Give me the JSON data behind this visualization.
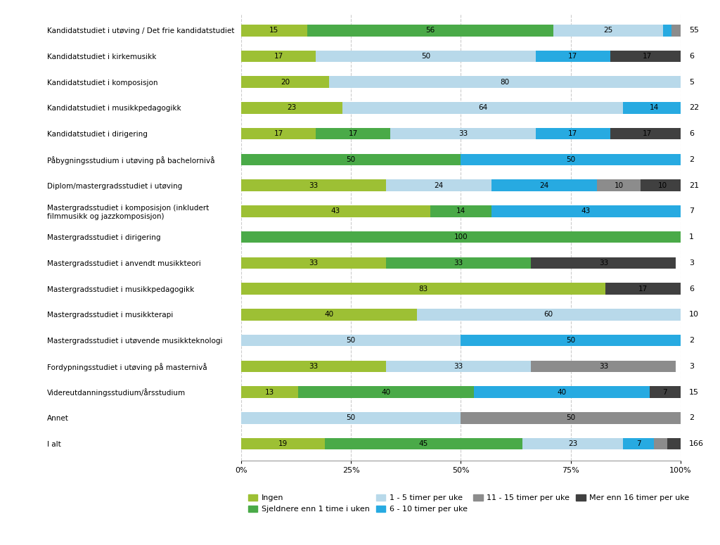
{
  "categories": [
    "Kandidatstudiet i utøving / Det frie kandidatstudiet",
    "Kandidatstudiet i kirkemusikk",
    "Kandidatstudiet i komposisjon",
    "Kandidatstudiet i musikkpedagogikk",
    "Kandidatstudiet i dirigering",
    "Påbygningsstudium i utøving på bachelornivå",
    "Diplom/mastergradsstudiet i utøving",
    "Mastergradsstudiet i komposisjon (inkludert\nfilmmusikk og jazzkomposisjon)",
    "Mastergradsstudiet i dirigering",
    "Mastergradsstudiet i anvendt musikkteori",
    "Mastergradsstudiet i musikkpedagogikk",
    "Mastergradsstudiet i musikkterapi",
    "Mastergradsstudiet i utøvende musikkteknologi",
    "Fordypningsstudiet i utøving på masternivå",
    "Videreutdanningsstudium/årsstudium",
    "Annet",
    "I alt"
  ],
  "n_values": [
    55,
    6,
    5,
    22,
    6,
    2,
    21,
    7,
    1,
    3,
    6,
    10,
    2,
    3,
    15,
    2,
    166
  ],
  "data": [
    [
      15,
      56,
      25,
      2,
      2,
      0
    ],
    [
      17,
      0,
      50,
      17,
      0,
      17
    ],
    [
      20,
      0,
      80,
      0,
      0,
      0
    ],
    [
      23,
      0,
      64,
      14,
      0,
      0
    ],
    [
      17,
      17,
      33,
      17,
      0,
      17
    ],
    [
      0,
      50,
      0,
      50,
      0,
      0
    ],
    [
      33,
      0,
      24,
      24,
      10,
      10
    ],
    [
      43,
      14,
      0,
      43,
      0,
      0
    ],
    [
      0,
      100,
      0,
      0,
      0,
      0
    ],
    [
      33,
      33,
      0,
      0,
      0,
      33
    ],
    [
      83,
      0,
      0,
      0,
      0,
      17
    ],
    [
      40,
      0,
      60,
      0,
      0,
      0
    ],
    [
      0,
      0,
      50,
      50,
      0,
      0
    ],
    [
      33,
      0,
      33,
      0,
      33,
      0
    ],
    [
      13,
      40,
      0,
      40,
      0,
      7
    ],
    [
      0,
      0,
      50,
      0,
      50,
      0
    ],
    [
      19,
      45,
      23,
      7,
      3,
      3
    ]
  ],
  "colors": [
    "#9dc034",
    "#4aaa48",
    "#b8d9ea",
    "#27aae1",
    "#8c8c8c",
    "#404040"
  ],
  "legend_labels": [
    "Ingen",
    "Sjeldnere enn 1 time i uken",
    "1 - 5 timer per uke",
    "6 - 10 timer per uke",
    "11 - 15 timer per uke",
    "Mer enn 16 timer per uke"
  ],
  "background_color": "#ffffff",
  "bar_height": 0.45,
  "fontsize_labels": 7.5,
  "fontsize_ytick": 7.5,
  "fontsize_axis": 8,
  "fontsize_legend": 8,
  "fontsize_n": 8
}
